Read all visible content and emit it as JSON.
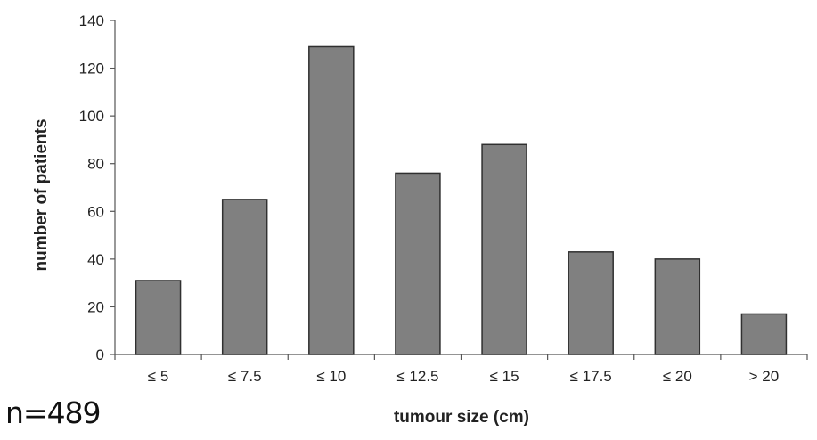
{
  "chart_data": {
    "type": "bar",
    "categories": [
      "≤ 5",
      "≤ 7.5",
      "≤ 10",
      "≤ 12.5",
      "≤ 15",
      "≤ 17.5",
      "≤ 20",
      "> 20"
    ],
    "values": [
      31,
      65,
      129,
      76,
      88,
      43,
      40,
      17
    ],
    "xlabel": "tumour size (cm)",
    "ylabel": "number of patients",
    "ylim": [
      0,
      140
    ],
    "yticks": [
      0,
      20,
      40,
      60,
      80,
      100,
      120,
      140
    ],
    "grid": false,
    "legend": "none",
    "bar_color": "#808080",
    "bar_edge_color": "#303030"
  },
  "annotation": "n=489"
}
